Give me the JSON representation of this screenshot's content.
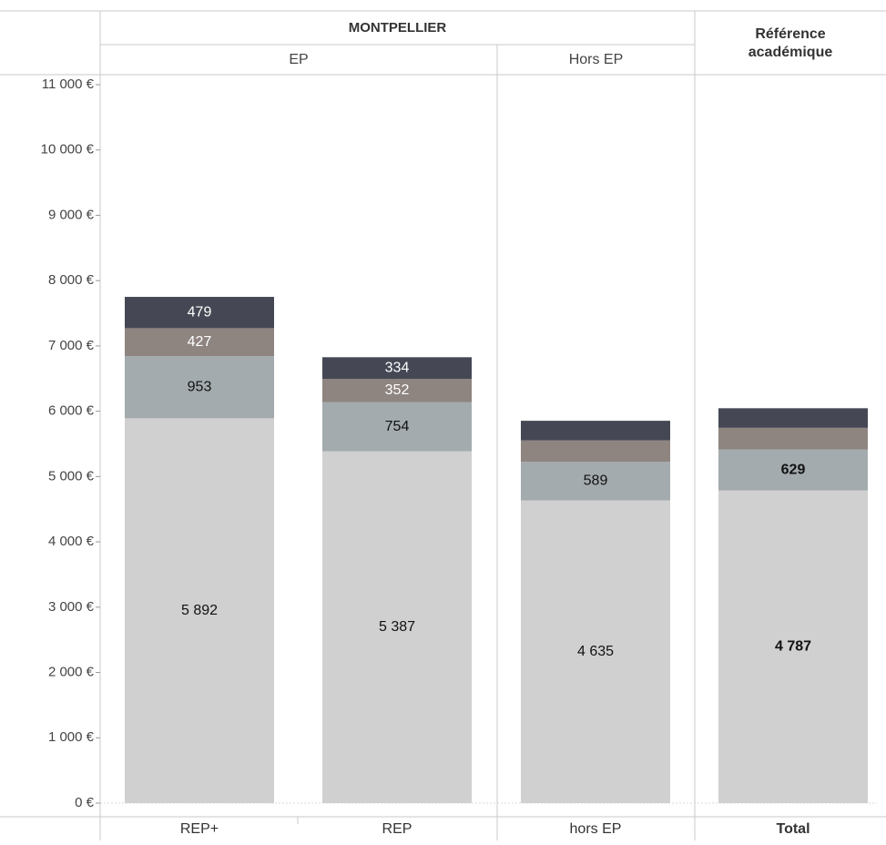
{
  "chart_data": {
    "type": "bar",
    "stacked": true,
    "header": {
      "group_label": "MONTPELLIER",
      "reference_label_line1": "Référence",
      "reference_label_line2": "académique",
      "subgroups": [
        "EP",
        "Hors EP"
      ]
    },
    "categories": [
      "REP+",
      "REP",
      "hors EP",
      "Total"
    ],
    "bold_categories": [
      "Total"
    ],
    "ylim": [
      0,
      11000
    ],
    "yticks": [
      0,
      1000,
      2000,
      3000,
      4000,
      5000,
      6000,
      7000,
      8000,
      9000,
      10000,
      11000
    ],
    "ytick_labels": [
      "0 €",
      "1 000 €",
      "2 000 €",
      "3 000 €",
      "4 000 €",
      "5 000 €",
      "6 000 €",
      "7 000 €",
      "8 000 €",
      "9 000 €",
      "10 000 €",
      "11 000 €"
    ],
    "grid": false,
    "series": [
      {
        "color": "#d0d0d0",
        "label_color": "#111111",
        "values": [
          5892,
          5387,
          4635,
          4787
        ],
        "labels": [
          "5 892",
          "5 387",
          "4 635",
          "4 787"
        ]
      },
      {
        "color": "#a3abae",
        "label_color": "#111111",
        "values": [
          953,
          754,
          589,
          629
        ],
        "labels": [
          "953",
          "754",
          "589",
          "629"
        ]
      },
      {
        "color": "#8e8480",
        "label_color": "#ffffff",
        "values": [
          427,
          352,
          330,
          330
        ],
        "labels": [
          "427",
          "352",
          "",
          ""
        ]
      },
      {
        "color": "#454854",
        "label_color": "#ffffff",
        "values": [
          479,
          334,
          300,
          300
        ],
        "labels": [
          "479",
          "334",
          "",
          ""
        ]
      }
    ]
  }
}
